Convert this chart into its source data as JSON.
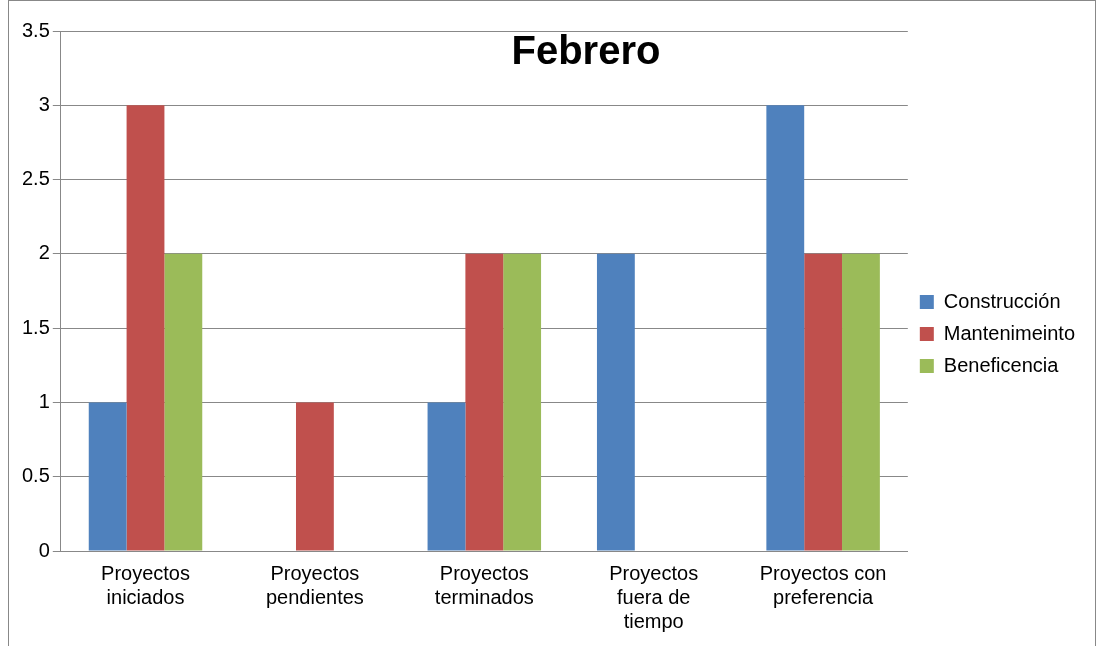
{
  "chart_data": {
    "type": "bar",
    "title": "Febrero",
    "categories": [
      "Proyectos iniciados",
      "Proyectos pendientes",
      "Proyectos terminados",
      "Proyectos fuera de tiempo",
      "Proyectos con preferencia"
    ],
    "series": [
      {
        "name": "Construcción",
        "color": "#4f81bd",
        "values": [
          1,
          0,
          1,
          2,
          3
        ]
      },
      {
        "name": "Mantenimeinto",
        "color": "#c0504d",
        "values": [
          3,
          1,
          2,
          0,
          2
        ]
      },
      {
        "name": "Beneficencia",
        "color": "#9bbb59",
        "values": [
          2,
          0,
          2,
          0,
          2
        ]
      }
    ],
    "ylim": [
      0,
      3.5
    ],
    "yticks": [
      0,
      0.5,
      1,
      1.5,
      2,
      2.5,
      3,
      3.5
    ],
    "grid": "y",
    "legend": "right"
  }
}
